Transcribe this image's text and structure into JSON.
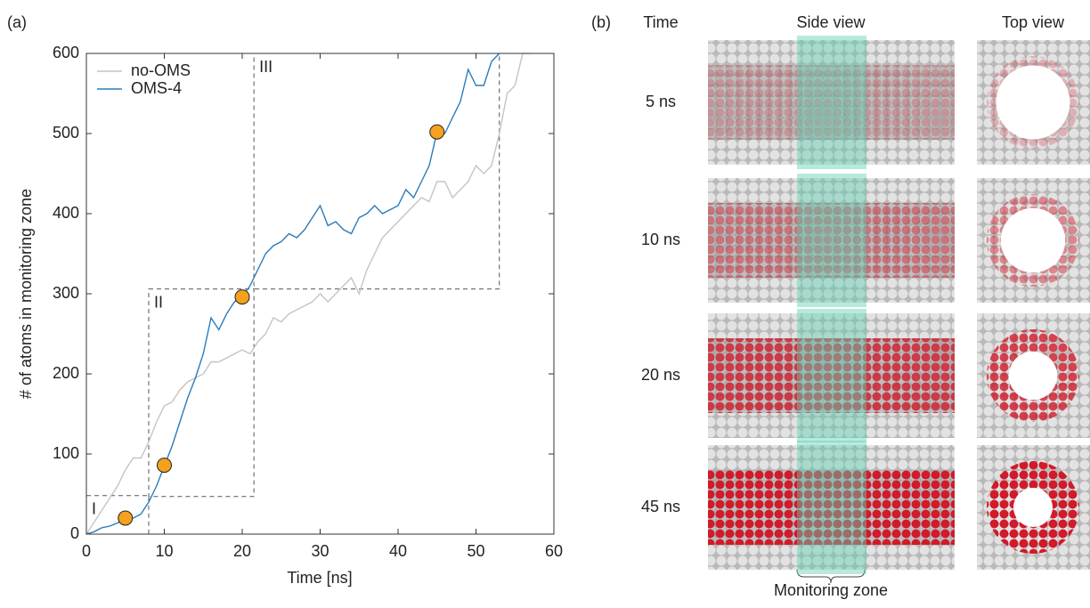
{
  "panel_labels": [
    "(a)",
    "(b)"
  ],
  "chart_data": {
    "type": "line",
    "xlabel": "Time [ns]",
    "ylabel": "# of atoms in monitoring zone",
    "xlim": [
      0,
      60
    ],
    "ylim": [
      0,
      600
    ],
    "xticks": [
      0,
      10,
      20,
      30,
      40,
      50,
      60
    ],
    "yticks": [
      0,
      100,
      200,
      300,
      400,
      500,
      600
    ],
    "legend": "upper left",
    "series": [
      {
        "name": "no-OMS",
        "color": "#c4c4c4",
        "x": [
          0,
          1,
          2,
          3,
          4,
          5,
          6,
          7,
          8,
          9,
          10,
          11,
          12,
          13,
          14,
          15,
          16,
          17,
          18,
          19,
          20,
          21,
          22,
          23,
          24,
          25,
          26,
          27,
          28,
          29,
          30,
          31,
          32,
          33,
          34,
          35,
          36,
          37,
          38,
          39,
          40,
          41,
          42,
          43,
          44,
          45,
          46,
          47,
          48,
          49,
          50,
          51,
          52,
          53,
          54,
          55,
          56,
          57
        ],
        "values": [
          0,
          15,
          30,
          45,
          60,
          80,
          95,
          95,
          115,
          140,
          160,
          165,
          180,
          190,
          195,
          200,
          215,
          215,
          220,
          225,
          230,
          225,
          240,
          250,
          270,
          265,
          275,
          280,
          285,
          290,
          300,
          290,
          300,
          310,
          320,
          300,
          330,
          350,
          370,
          380,
          390,
          400,
          410,
          420,
          415,
          440,
          440,
          420,
          430,
          440,
          460,
          450,
          460,
          500,
          550,
          560,
          600,
          600
        ]
      },
      {
        "name": "OMS-4",
        "color": "#2b7bba",
        "x": [
          0,
          1,
          2,
          3,
          4,
          5,
          6,
          7,
          8,
          9,
          10,
          11,
          12,
          13,
          14,
          15,
          16,
          17,
          18,
          19,
          20,
          21,
          22,
          23,
          24,
          25,
          26,
          27,
          28,
          29,
          30,
          31,
          32,
          33,
          34,
          35,
          36,
          37,
          38,
          39,
          40,
          41,
          42,
          43,
          44,
          45,
          46,
          47,
          48,
          49,
          50,
          51,
          52,
          53
        ],
        "values": [
          0,
          3,
          8,
          10,
          14,
          18,
          20,
          25,
          40,
          60,
          85,
          110,
          140,
          170,
          195,
          225,
          270,
          255,
          275,
          290,
          296,
          310,
          330,
          350,
          360,
          365,
          375,
          370,
          380,
          395,
          410,
          385,
          390,
          380,
          375,
          395,
          400,
          410,
          400,
          405,
          410,
          430,
          420,
          440,
          460,
          502,
          500,
          520,
          540,
          580,
          560,
          560,
          590,
          600
        ]
      }
    ],
    "markers": {
      "color": "#f5a01e",
      "x": [
        5,
        10,
        20,
        45
      ],
      "values": [
        20,
        86,
        296,
        502
      ]
    },
    "regions": [
      {
        "label": "I",
        "xlim": [
          0,
          8
        ],
        "ylim": [
          0,
          48
        ]
      },
      {
        "label": "II",
        "xlim": [
          8,
          21.5
        ],
        "ylim": [
          47,
          306
        ]
      },
      {
        "label": "III",
        "xlim": [
          21.5,
          53
        ],
        "ylim": [
          306,
          600
        ]
      }
    ]
  },
  "panel_b": {
    "columns": [
      "Time",
      "Side view",
      "Top view"
    ],
    "rows": [
      "5 ns",
      "10 ns",
      "20 ns",
      "45 ns"
    ],
    "zone_label": "Monitoring zone"
  }
}
